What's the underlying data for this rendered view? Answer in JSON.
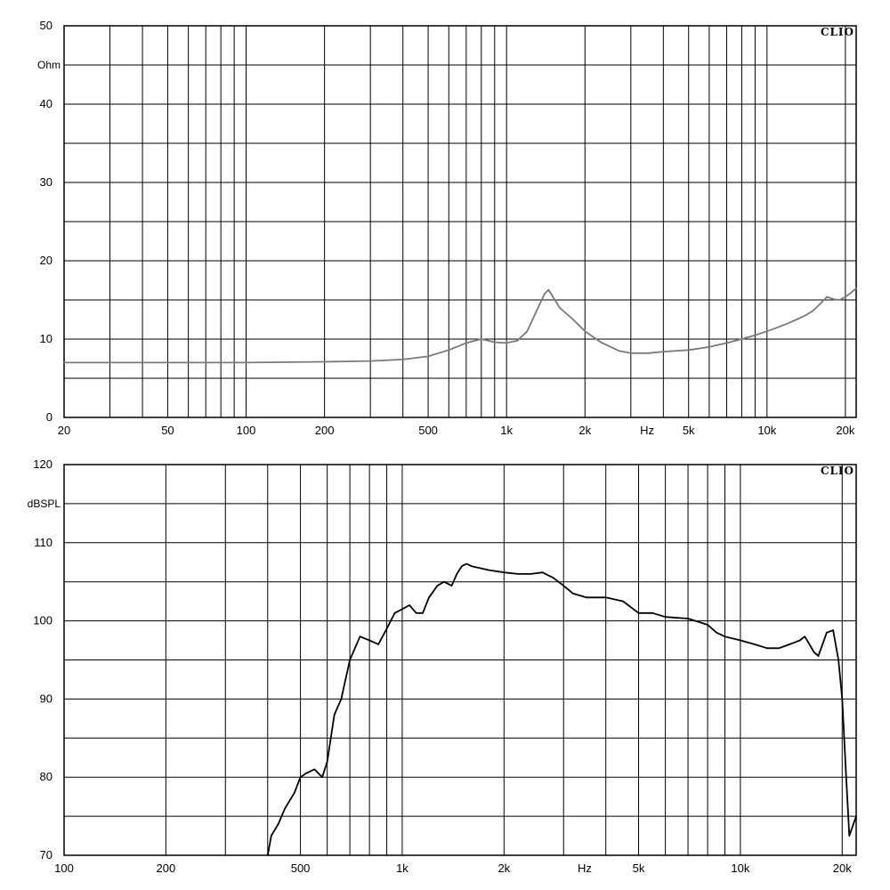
{
  "chart_data": [
    {
      "type": "line",
      "brand": "CLIO",
      "ylabel": "Ohm",
      "xlabel": "Hz",
      "x_scale": "log",
      "xlim": [
        20,
        22000
      ],
      "ylim": [
        0,
        50
      ],
      "x_ticks": [
        {
          "value": 20,
          "label": "20"
        },
        {
          "value": 50,
          "label": "50"
        },
        {
          "value": 100,
          "label": "100"
        },
        {
          "value": 200,
          "label": "200"
        },
        {
          "value": 500,
          "label": "500"
        },
        {
          "value": 1000,
          "label": "1k"
        },
        {
          "value": 2000,
          "label": "2k"
        },
        {
          "value": 5000,
          "label": "5k"
        },
        {
          "value": 10000,
          "label": "10k"
        },
        {
          "value": 20000,
          "label": "20k"
        }
      ],
      "y_ticks": [
        0,
        10,
        20,
        30,
        40,
        50
      ],
      "x_grid": [
        20,
        30,
        40,
        50,
        60,
        70,
        80,
        90,
        100,
        200,
        300,
        400,
        500,
        600,
        700,
        800,
        900,
        1000,
        2000,
        3000,
        4000,
        5000,
        6000,
        7000,
        8000,
        9000,
        10000,
        20000
      ],
      "y_grid": [
        5,
        10,
        15,
        20,
        25,
        30,
        35,
        40,
        45
      ],
      "grid": true,
      "line_color": "#7a7a7a",
      "series": [
        {
          "x": [
            20,
            30,
            50,
            100,
            200,
            300,
            400,
            500,
            600,
            700,
            800,
            900,
            1000,
            1100,
            1200,
            1300,
            1400,
            1450,
            1500,
            1600,
            1800,
            2000,
            2300,
            2700,
            3000,
            3500,
            4000,
            5000,
            6000,
            7000,
            8000,
            9000,
            10000,
            11000,
            12000,
            13000,
            14000,
            15000,
            16000,
            17000,
            18000,
            19000,
            20000,
            21000,
            22000
          ],
          "y": [
            7.0,
            7.0,
            7.0,
            7.0,
            7.1,
            7.2,
            7.4,
            7.8,
            8.6,
            9.5,
            10.0,
            9.6,
            9.5,
            9.8,
            11.0,
            13.5,
            15.8,
            16.3,
            15.5,
            14.0,
            12.5,
            11.0,
            9.6,
            8.5,
            8.2,
            8.2,
            8.4,
            8.6,
            9.0,
            9.5,
            10.0,
            10.5,
            11.0,
            11.5,
            12.0,
            12.5,
            13.0,
            13.6,
            14.5,
            15.4,
            15.1,
            15.0,
            15.4,
            15.9,
            16.5
          ]
        }
      ]
    },
    {
      "type": "line",
      "brand": "CLIO",
      "ylabel": "dBSPL",
      "xlabel": "Hz",
      "x_scale": "log",
      "xlim": [
        100,
        22000
      ],
      "ylim": [
        70,
        120
      ],
      "x_ticks": [
        {
          "value": 100,
          "label": "100"
        },
        {
          "value": 200,
          "label": "200"
        },
        {
          "value": 500,
          "label": "500"
        },
        {
          "value": 1000,
          "label": "1k"
        },
        {
          "value": 2000,
          "label": "2k"
        },
        {
          "value": 5000,
          "label": "5k"
        },
        {
          "value": 10000,
          "label": "10k"
        },
        {
          "value": 20000,
          "label": "20k"
        }
      ],
      "y_ticks": [
        70,
        80,
        90,
        100,
        110,
        120
      ],
      "x_grid": [
        100,
        200,
        300,
        400,
        500,
        600,
        700,
        800,
        900,
        1000,
        2000,
        3000,
        4000,
        5000,
        6000,
        7000,
        8000,
        9000,
        10000,
        20000
      ],
      "y_grid": [
        75,
        80,
        85,
        90,
        95,
        100,
        105,
        110,
        115
      ],
      "grid": true,
      "line_color": "#000000",
      "series": [
        {
          "x": [
            400,
            410,
            430,
            450,
            480,
            500,
            520,
            550,
            580,
            600,
            630,
            660,
            700,
            750,
            800,
            850,
            900,
            950,
            1000,
            1050,
            1100,
            1150,
            1200,
            1270,
            1330,
            1400,
            1450,
            1500,
            1550,
            1600,
            1800,
            2000,
            2200,
            2400,
            2600,
            2800,
            3000,
            3200,
            3500,
            4000,
            4500,
            5000,
            5500,
            6000,
            7000,
            8000,
            8500,
            9000,
            10000,
            11000,
            12000,
            13000,
            14000,
            15000,
            15500,
            16000,
            16500,
            17000,
            18000,
            18800,
            19500,
            20000,
            20500,
            21000,
            22000
          ],
          "y": [
            70.0,
            72.5,
            74.0,
            76.0,
            78.0,
            80.0,
            80.5,
            81.0,
            80.0,
            82.0,
            88.0,
            90.0,
            95.0,
            98.0,
            97.5,
            97.0,
            99.0,
            101.0,
            101.5,
            102.0,
            101.0,
            101.0,
            103.0,
            104.5,
            105.0,
            104.5,
            106.0,
            107.0,
            107.3,
            107.0,
            106.5,
            106.2,
            106.0,
            106.0,
            106.2,
            105.5,
            104.5,
            103.5,
            103.0,
            103.0,
            102.5,
            101.0,
            101.0,
            100.5,
            100.3,
            99.5,
            98.5,
            98.0,
            97.5,
            97.0,
            96.5,
            96.5,
            97.0,
            97.5,
            98.0,
            97.0,
            96.0,
            95.5,
            98.5,
            98.8,
            95.0,
            90.0,
            81.0,
            72.5,
            75.0
          ]
        }
      ]
    }
  ]
}
